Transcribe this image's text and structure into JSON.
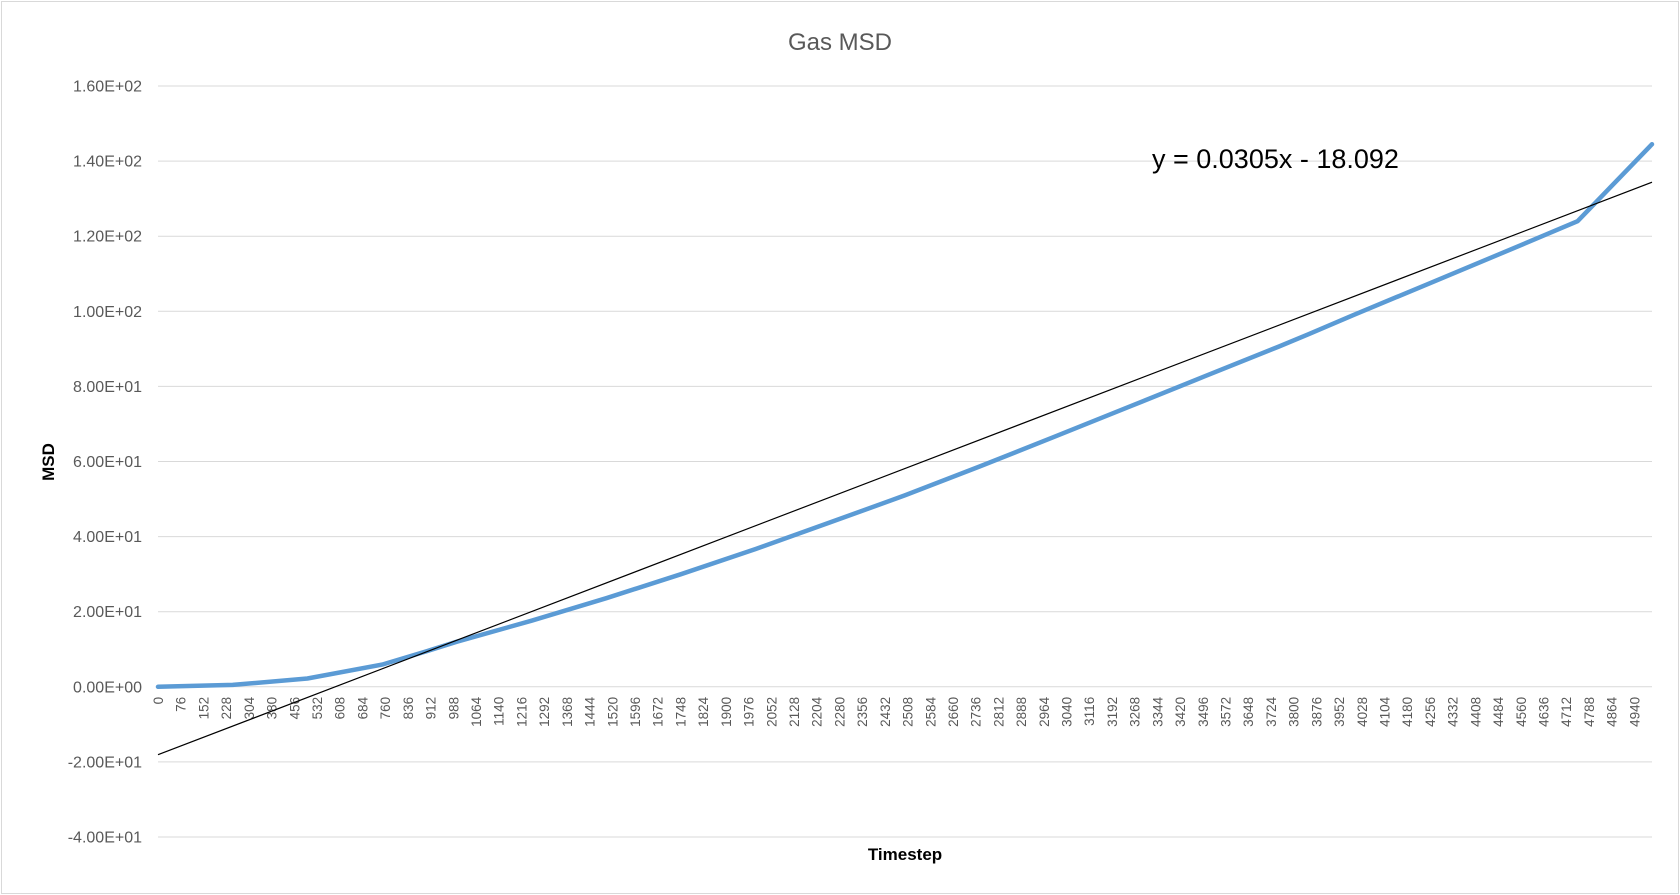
{
  "chart_data": {
    "type": "line",
    "title": "Gas MSD",
    "xlabel": "Timestep",
    "ylabel": "MSD",
    "x_tick_labels": [
      "0",
      "76",
      "152",
      "228",
      "304",
      "380",
      "456",
      "532",
      "608",
      "684",
      "760",
      "836",
      "912",
      "988",
      "1064",
      "1140",
      "1216",
      "1292",
      "1368",
      "1444",
      "1520",
      "1596",
      "1672",
      "1748",
      "1824",
      "1900",
      "1976",
      "2052",
      "2128",
      "2204",
      "2280",
      "2356",
      "2432",
      "2508",
      "2584",
      "2660",
      "2736",
      "2812",
      "2888",
      "2964",
      "3040",
      "3116",
      "3192",
      "3268",
      "3344",
      "3420",
      "3496",
      "3572",
      "3648",
      "3724",
      "3800",
      "3876",
      "3952",
      "4028",
      "4104",
      "4180",
      "4256",
      "4332",
      "4408",
      "4484",
      "4560",
      "4636",
      "4712",
      "4788",
      "4864",
      "4940"
    ],
    "xlim": [
      0,
      4999
    ],
    "y_tick_labels": [
      "-4.00E+01",
      "-2.00E+01",
      "0.00E+00",
      "2.00E+01",
      "4.00E+01",
      "6.00E+01",
      "8.00E+01",
      "1.00E+02",
      "1.20E+02",
      "1.40E+02",
      "1.60E+02"
    ],
    "ylim": [
      -40,
      160
    ],
    "grid": true,
    "legend": "none",
    "series": [
      {
        "color": "#5b9bd5",
        "x": [
          0,
          250,
          500,
          750,
          900,
          1000,
          1250,
          1500,
          1750,
          2000,
          2250,
          2500,
          2750,
          3000,
          3250,
          3500,
          3750,
          3850,
          4000,
          4250,
          4500,
          4750,
          4999
        ],
        "values": [
          0.0,
          0.5,
          2.2,
          5.9,
          9.5,
          12.0,
          17.6,
          23.6,
          30.0,
          36.7,
          43.8,
          51.0,
          58.7,
          66.6,
          74.6,
          82.6,
          90.6,
          93.9,
          99.0,
          107.3,
          115.6,
          124.0,
          144.5
        ]
      }
    ],
    "trendline": {
      "color": "#000000",
      "slope": 0.0305,
      "intercept": -18.092,
      "equation_label": "y = 0.0305x - 18.092"
    }
  }
}
